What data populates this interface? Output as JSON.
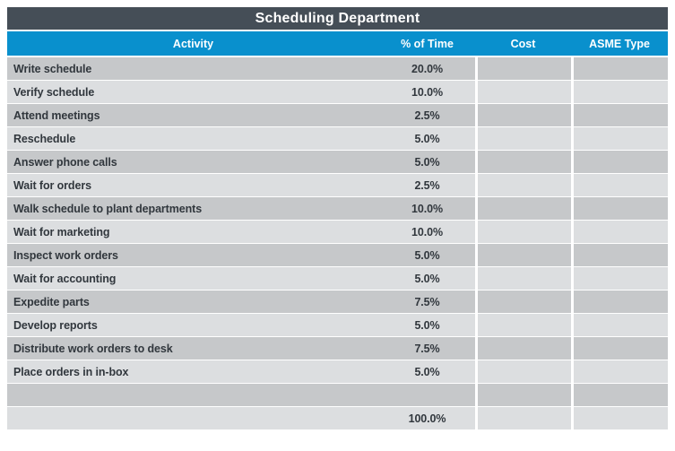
{
  "title": "Scheduling Department",
  "columns": [
    "Activity",
    "% of Time",
    "Cost",
    "ASME Type"
  ],
  "rows": [
    {
      "activity": "Write schedule",
      "pct_of_time": "20.0%",
      "cost": "",
      "asme_type": ""
    },
    {
      "activity": "Verify schedule",
      "pct_of_time": "10.0%",
      "cost": "",
      "asme_type": ""
    },
    {
      "activity": "Attend meetings",
      "pct_of_time": "2.5%",
      "cost": "",
      "asme_type": ""
    },
    {
      "activity": "Reschedule",
      "pct_of_time": "5.0%",
      "cost": "",
      "asme_type": ""
    },
    {
      "activity": "Answer phone calls",
      "pct_of_time": "5.0%",
      "cost": "",
      "asme_type": ""
    },
    {
      "activity": "Wait for orders",
      "pct_of_time": "2.5%",
      "cost": "",
      "asme_type": ""
    },
    {
      "activity": "Walk schedule to plant departments",
      "pct_of_time": "10.0%",
      "cost": "",
      "asme_type": ""
    },
    {
      "activity": "Wait for marketing",
      "pct_of_time": "10.0%",
      "cost": "",
      "asme_type": ""
    },
    {
      "activity": "Inspect work orders",
      "pct_of_time": "5.0%",
      "cost": "",
      "asme_type": ""
    },
    {
      "activity": "Wait for accounting",
      "pct_of_time": "5.0%",
      "cost": "",
      "asme_type": ""
    },
    {
      "activity": "Expedite parts",
      "pct_of_time": "7.5%",
      "cost": "",
      "asme_type": ""
    },
    {
      "activity": "Develop reports",
      "pct_of_time": "5.0%",
      "cost": "",
      "asme_type": ""
    },
    {
      "activity": "Distribute work orders to desk",
      "pct_of_time": "7.5%",
      "cost": "",
      "asme_type": ""
    },
    {
      "activity": "Place orders in in-box",
      "pct_of_time": "5.0%",
      "cost": "",
      "asme_type": ""
    }
  ],
  "spacer_row": {
    "activity": "",
    "pct_of_time": "",
    "cost": "",
    "asme_type": ""
  },
  "total_row": {
    "activity": "",
    "pct_of_time": "100.0%",
    "cost": "",
    "asme_type": ""
  },
  "colors": {
    "title_bar_bg": "#454e57",
    "header_bg": "#0990cd",
    "row_dark": "#c6c8ca",
    "row_light": "#dcdee0",
    "row_text": "#31373d",
    "header_text": "#ffffff"
  }
}
